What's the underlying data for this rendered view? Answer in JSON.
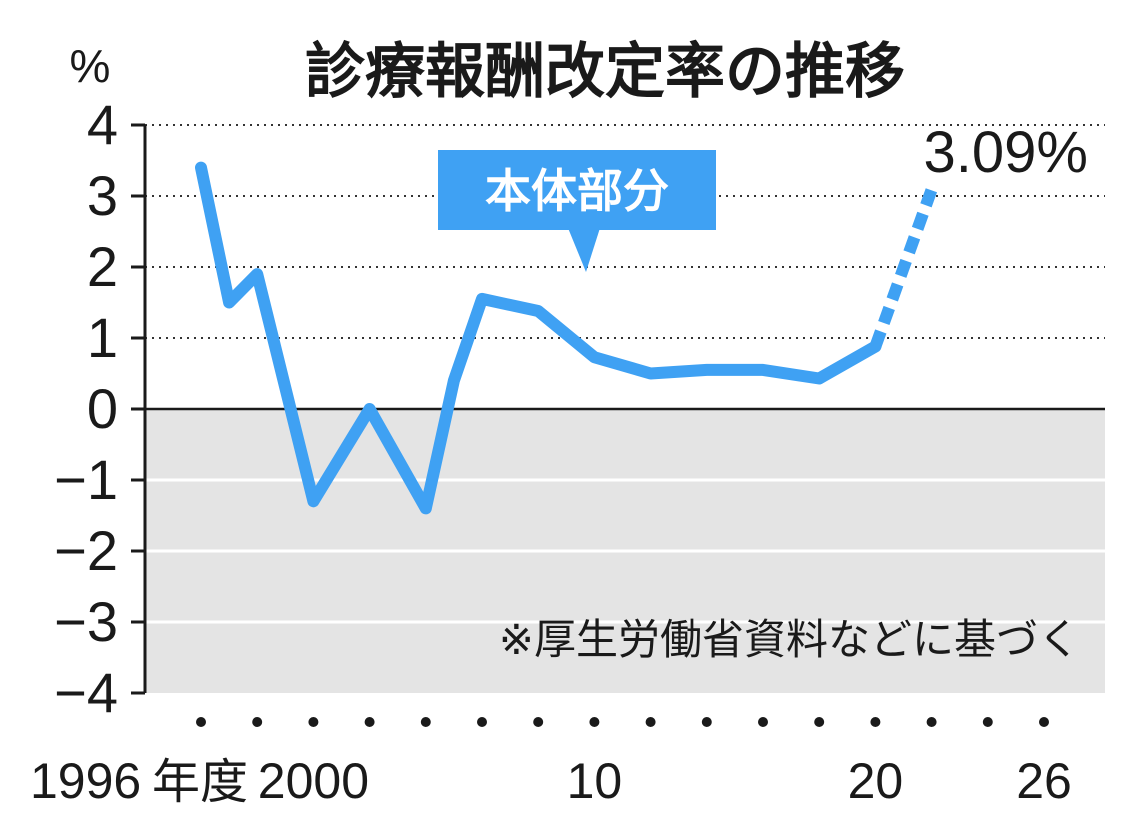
{
  "chart_data": {
    "type": "line",
    "title": "診療報酬改定率の推移",
    "ylabel": "%",
    "ylim": [
      -4,
      4
    ],
    "yticks": [
      "4",
      "3",
      "2",
      "1",
      "0",
      "−1",
      "−2",
      "−3",
      "−4"
    ],
    "xtick_labels": [
      {
        "year": 1996,
        "label": "1996",
        "suffix": "年度"
      },
      {
        "year": 2000,
        "label": "2000"
      },
      {
        "year": 2010,
        "label": "10"
      },
      {
        "year": 2020,
        "label": "20"
      },
      {
        "year": 2026,
        "label": "26"
      }
    ],
    "dot_years": [
      1996,
      1998,
      2000,
      2002,
      2004,
      2006,
      2008,
      2010,
      2012,
      2014,
      2016,
      2018,
      2020,
      2022,
      2024,
      2026
    ],
    "series": [
      {
        "name": "",
        "color": "#3fa1f3",
        "points": [
          {
            "year": 1996,
            "value": 3.4
          },
          {
            "year": 1997,
            "value": 1.5
          },
          {
            "year": 1998,
            "value": 1.9
          },
          {
            "year": 2000,
            "value": -1.3
          },
          {
            "year": 2002,
            "value": 0.0
          },
          {
            "year": 2004,
            "value": -1.4
          },
          {
            "year": 2005,
            "value": 0.4
          },
          {
            "year": 2006,
            "value": 1.55
          },
          {
            "year": 2008,
            "value": 1.38
          },
          {
            "year": 2010,
            "value": 0.73
          },
          {
            "year": 2012,
            "value": 0.5
          },
          {
            "year": 2014,
            "value": 0.55
          },
          {
            "year": 2016,
            "value": 0.55
          },
          {
            "year": 2018,
            "value": 0.43
          },
          {
            "year": 2020,
            "value": 0.88
          },
          {
            "year": 2022,
            "value": 3.09,
            "dashed": true
          }
        ]
      }
    ],
    "negative_region_fill": "#e4e4e4",
    "callout": {
      "text": "本体部分",
      "color": "#3fa1f3"
    },
    "end_label": "3.09%",
    "source_note": "※厚生労働省資料などに基づく",
    "grid": "dotted"
  }
}
